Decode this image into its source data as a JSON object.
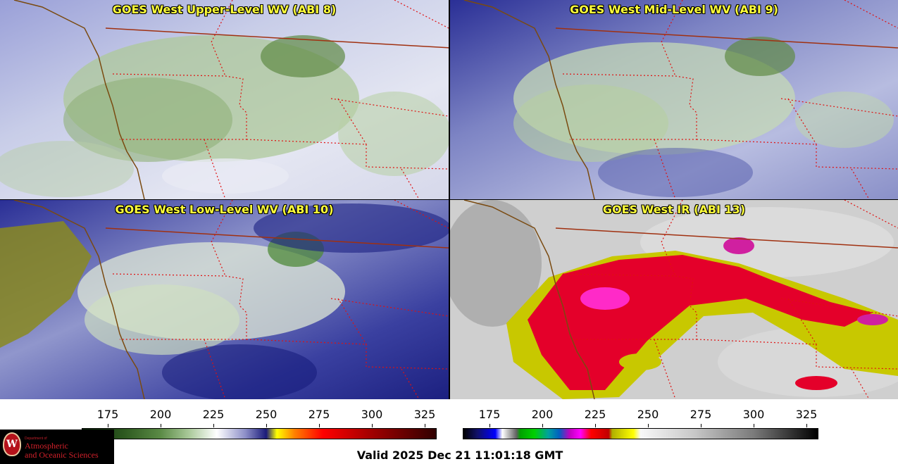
{
  "panels": [
    {
      "id": "upper",
      "title": "GOES West Upper-Level WV (ABI 8)"
    },
    {
      "id": "mid",
      "title": "GOES West Mid-Level WV (ABI 9)"
    },
    {
      "id": "low",
      "title": "GOES West Low-Level WV (ABI 10)"
    },
    {
      "id": "ir",
      "title": "GOES West IR (ABI 13)"
    }
  ],
  "colorbars": {
    "wv": {
      "ticks": [
        "175",
        "200",
        "225",
        "250",
        "275",
        "300",
        "325"
      ]
    },
    "ir": {
      "ticks": [
        "175",
        "200",
        "225",
        "250",
        "275",
        "300",
        "325"
      ]
    }
  },
  "logo": {
    "seal_letter": "W",
    "department": "Department of",
    "line1": "Atmospheric",
    "line2": "and Oceanic Sciences"
  },
  "footer": {
    "valid_text": "Valid 2025 Dec 21 11:01:18 GMT"
  },
  "colors": {
    "title_text": "#ffff3a",
    "coastline": "#7a4a10",
    "state_border": "#e01010",
    "intl_border": "#a03010"
  }
}
